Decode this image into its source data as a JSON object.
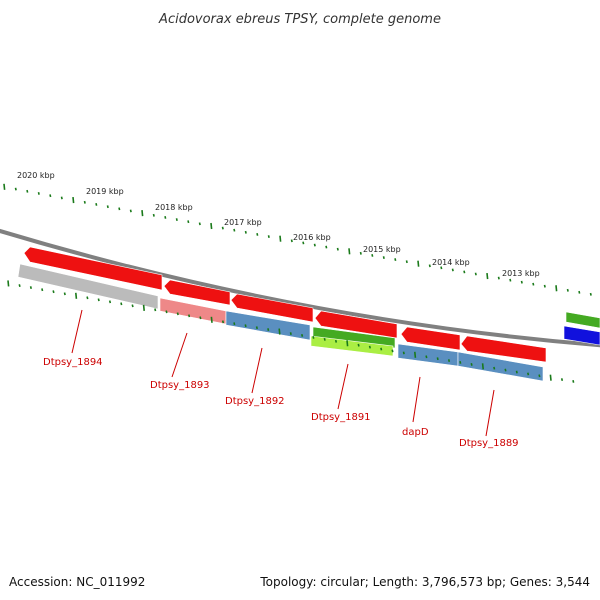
{
  "title": "Acidovorax ebreus TPSY, complete genome",
  "footer": {
    "accession": "Accession: NC_011992",
    "summary": "Topology: circular; Length: 3,796,573 bp; Genes: 3,544"
  },
  "colors": {
    "backbone": "#808080",
    "tick": "#1a7a1a",
    "red": "#ee1111",
    "grey": "#bbbbbb",
    "pink": "#ee8888",
    "steelblue": "#5a8fc0",
    "green": "#44aa22",
    "lime": "#aaee44",
    "blue": "#1111dd",
    "label": "#cc0000"
  },
  "scale_labels": [
    "2020 kbp",
    "2019 kbp",
    "2018 kbp",
    "2017 kbp",
    "2016 kbp",
    "2015 kbp",
    "2014 kbp",
    "2013 kbp"
  ],
  "gene_labels": [
    "Dtpsy_1894",
    "Dtpsy_1893",
    "Dtpsy_1892",
    "Dtpsy_1891",
    "dapD",
    "Dtpsy_1889"
  ]
}
